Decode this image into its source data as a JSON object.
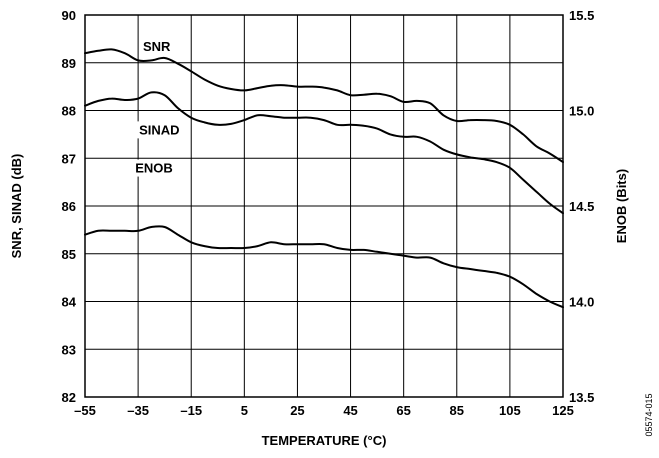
{
  "chart_data": {
    "type": "line",
    "title": "",
    "xlabel": "TEMPERATURE (°C)",
    "ylabel": "SNR, SINAD (dB)",
    "y2label": "ENOB (Bits)",
    "figure_id": "05574-015",
    "xlim": [
      -55,
      125
    ],
    "ylim": [
      82,
      90
    ],
    "y2lim": [
      13.5,
      15.5
    ],
    "grid": true,
    "x_ticks": [
      -55,
      -35,
      -15,
      5,
      25,
      45,
      65,
      85,
      105,
      125
    ],
    "x_tick_labels": [
      "–55",
      "–35",
      "–15",
      "5",
      "25",
      "45",
      "65",
      "85",
      "105",
      "125"
    ],
    "y_ticks": [
      82,
      83,
      84,
      85,
      86,
      87,
      88,
      89,
      90
    ],
    "y_tick_labels": [
      "82",
      "83",
      "84",
      "85",
      "86",
      "87",
      "88",
      "89",
      "90"
    ],
    "y2_ticks": [
      13.5,
      14.0,
      14.5,
      15.0,
      15.5
    ],
    "y2_tick_labels": [
      "13.5",
      "14.0",
      "14.5",
      "15.0",
      "15.5"
    ],
    "series": [
      {
        "name": "SNR",
        "axis": "left",
        "x": [
          -55,
          -50,
          -45,
          -40,
          -35,
          -30,
          -25,
          -20,
          -15,
          -10,
          -5,
          0,
          5,
          10,
          15,
          20,
          25,
          30,
          35,
          40,
          45,
          50,
          55,
          60,
          65,
          70,
          75,
          80,
          85,
          90,
          95,
          100,
          105,
          110,
          115,
          120,
          125
        ],
        "values": [
          89.2,
          89.25,
          89.28,
          89.2,
          89.05,
          89.05,
          89.1,
          88.98,
          88.82,
          88.65,
          88.52,
          88.45,
          88.42,
          88.47,
          88.52,
          88.53,
          88.5,
          88.5,
          88.48,
          88.42,
          88.32,
          88.33,
          88.35,
          88.3,
          88.18,
          88.2,
          88.15,
          87.9,
          87.78,
          87.8,
          87.8,
          87.78,
          87.7,
          87.5,
          87.25,
          87.1,
          86.92
        ]
      },
      {
        "name": "SINAD",
        "axis": "left",
        "x": [
          -55,
          -50,
          -45,
          -40,
          -35,
          -30,
          -25,
          -20,
          -15,
          -10,
          -5,
          0,
          5,
          10,
          15,
          20,
          25,
          30,
          35,
          40,
          45,
          50,
          55,
          60,
          65,
          70,
          75,
          80,
          85,
          90,
          95,
          100,
          105,
          110,
          115,
          120,
          125
        ],
        "values": [
          88.1,
          88.2,
          88.25,
          88.22,
          88.25,
          88.38,
          88.32,
          88.05,
          87.85,
          87.75,
          87.7,
          87.72,
          87.8,
          87.9,
          87.88,
          87.85,
          87.85,
          87.85,
          87.8,
          87.7,
          87.7,
          87.68,
          87.62,
          87.5,
          87.45,
          87.45,
          87.35,
          87.18,
          87.08,
          87.02,
          86.98,
          86.92,
          86.8,
          86.55,
          86.3,
          86.05,
          85.85
        ]
      },
      {
        "name": "ENOB",
        "axis": "right",
        "x": [
          -55,
          -50,
          -45,
          -40,
          -35,
          -30,
          -25,
          -20,
          -15,
          -10,
          -5,
          0,
          5,
          10,
          15,
          20,
          25,
          30,
          35,
          40,
          45,
          50,
          55,
          60,
          65,
          70,
          75,
          80,
          85,
          90,
          95,
          100,
          105,
          110,
          115,
          120,
          125
        ],
        "values": [
          14.35,
          14.37,
          14.37,
          14.37,
          14.37,
          14.39,
          14.39,
          14.35,
          14.31,
          14.29,
          14.28,
          14.28,
          14.28,
          14.29,
          14.31,
          14.3,
          14.3,
          14.3,
          14.3,
          14.28,
          14.27,
          14.27,
          14.26,
          14.25,
          14.24,
          14.23,
          14.23,
          14.2,
          14.18,
          14.17,
          14.16,
          14.15,
          14.13,
          14.09,
          14.04,
          14.0,
          13.97
        ]
      }
    ],
    "series_labels": [
      {
        "text": "SNR",
        "x": -28,
        "y": 89.25,
        "anchor": "middle"
      },
      {
        "text": "SINAD",
        "x": -27,
        "y": 87.5,
        "anchor": "middle"
      },
      {
        "text": "ENOB",
        "x": -29,
        "y": 86.7,
        "anchor": "middle"
      }
    ]
  }
}
